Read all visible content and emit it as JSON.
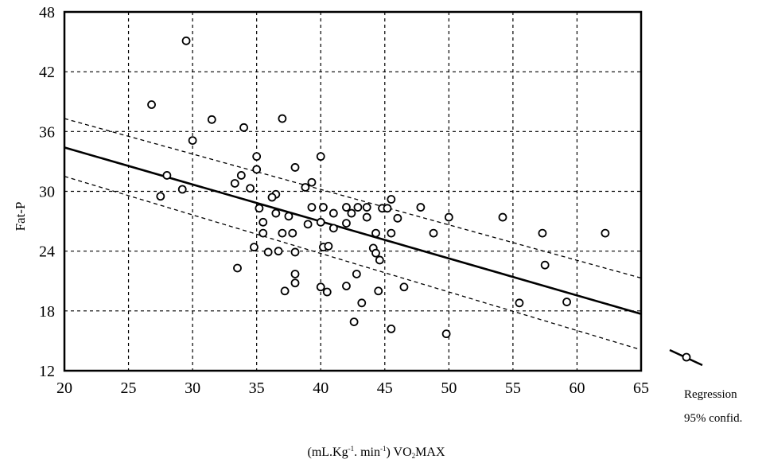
{
  "chart_data": {
    "type": "scatter",
    "ylabel": "Fat-P",
    "xlabel_parts": {
      "prefix": "(mL.Kg",
      "exp1": "-1",
      "mid": ". min",
      "exp2": "-1",
      "close": ") VO",
      "sub": "2",
      "suffix": "MAX"
    },
    "xlim": [
      20,
      65
    ],
    "ylim": [
      12,
      48
    ],
    "xticks": [
      20,
      25,
      30,
      35,
      40,
      45,
      50,
      55,
      60,
      65
    ],
    "yticks": [
      12,
      18,
      24,
      30,
      36,
      42,
      48
    ],
    "grid": true,
    "legend_position": "bottom-right, outside plot",
    "legend": [
      "Regression",
      "95% confid."
    ],
    "colors": {
      "line": "#000000",
      "marker": "#000000",
      "grid": "#000000"
    },
    "regression": {
      "x": [
        20,
        65
      ],
      "y": [
        34.4,
        17.7
      ]
    },
    "ci_upper": {
      "x": [
        20,
        65
      ],
      "y": [
        37.3,
        21.3
      ]
    },
    "ci_lower": {
      "x": [
        20,
        65
      ],
      "y": [
        31.5,
        14.1
      ]
    },
    "points": [
      [
        29.5,
        45.1
      ],
      [
        26.8,
        38.7
      ],
      [
        31.5,
        37.2
      ],
      [
        37.0,
        37.3
      ],
      [
        34.0,
        36.4
      ],
      [
        30.0,
        35.1
      ],
      [
        35.0,
        33.5
      ],
      [
        40.0,
        33.5
      ],
      [
        35.0,
        32.2
      ],
      [
        38.0,
        32.4
      ],
      [
        28.0,
        31.6
      ],
      [
        33.8,
        31.6
      ],
      [
        29.2,
        30.2
      ],
      [
        27.5,
        29.5
      ],
      [
        33.3,
        30.8
      ],
      [
        34.5,
        30.3
      ],
      [
        36.5,
        29.7
      ],
      [
        36.2,
        29.4
      ],
      [
        39.3,
        30.9
      ],
      [
        38.8,
        30.4
      ],
      [
        35.2,
        28.3
      ],
      [
        36.5,
        27.8
      ],
      [
        37.5,
        27.5
      ],
      [
        39.3,
        28.4
      ],
      [
        40.2,
        28.4
      ],
      [
        41.0,
        27.8
      ],
      [
        42.0,
        28.4
      ],
      [
        42.4,
        27.8
      ],
      [
        42.9,
        28.4
      ],
      [
        43.6,
        28.4
      ],
      [
        43.6,
        27.4
      ],
      [
        44.8,
        28.3
      ],
      [
        45.2,
        28.3
      ],
      [
        45.5,
        29.2
      ],
      [
        46.0,
        27.3
      ],
      [
        47.8,
        28.4
      ],
      [
        50.0,
        27.4
      ],
      [
        54.2,
        27.4
      ],
      [
        35.5,
        26.9
      ],
      [
        40.0,
        26.9
      ],
      [
        39.0,
        26.7
      ],
      [
        41.0,
        26.3
      ],
      [
        42.0,
        26.8
      ],
      [
        35.5,
        25.8
      ],
      [
        37.0,
        25.8
      ],
      [
        37.8,
        25.8
      ],
      [
        44.3,
        25.8
      ],
      [
        45.5,
        25.8
      ],
      [
        48.8,
        25.8
      ],
      [
        57.3,
        25.8
      ],
      [
        62.2,
        25.8
      ],
      [
        34.8,
        24.4
      ],
      [
        35.9,
        23.9
      ],
      [
        36.7,
        24.0
      ],
      [
        38.0,
        23.9
      ],
      [
        40.2,
        24.4
      ],
      [
        40.6,
        24.5
      ],
      [
        44.1,
        24.3
      ],
      [
        44.3,
        23.8
      ],
      [
        44.6,
        23.1
      ],
      [
        57.5,
        22.6
      ],
      [
        33.5,
        22.3
      ],
      [
        38.0,
        21.7
      ],
      [
        42.8,
        21.7
      ],
      [
        38.0,
        20.8
      ],
      [
        40.0,
        20.4
      ],
      [
        42.0,
        20.5
      ],
      [
        46.5,
        20.4
      ],
      [
        37.2,
        20.0
      ],
      [
        40.5,
        19.9
      ],
      [
        44.5,
        20.0
      ],
      [
        43.2,
        18.8
      ],
      [
        55.5,
        18.8
      ],
      [
        59.2,
        18.9
      ],
      [
        42.6,
        16.9
      ],
      [
        45.5,
        16.2
      ],
      [
        49.8,
        15.7
      ]
    ]
  }
}
